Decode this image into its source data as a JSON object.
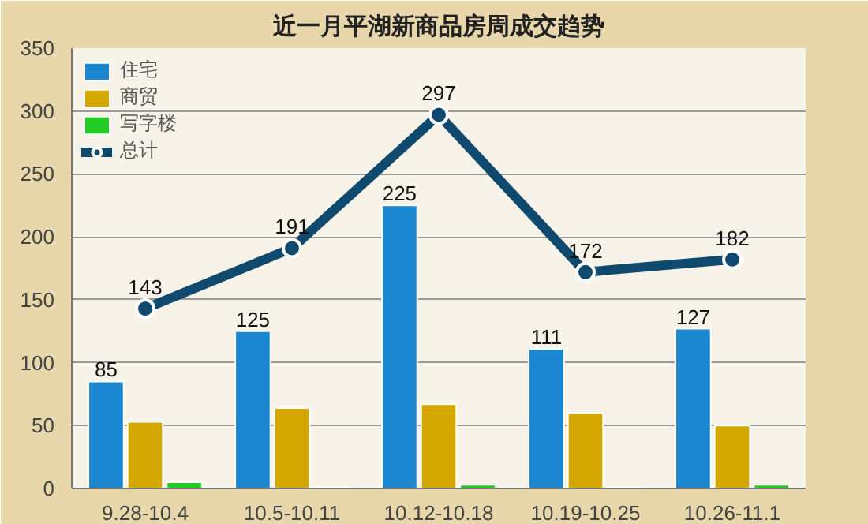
{
  "chart_data": {
    "type": "bar",
    "title": "近一月平湖新商品房周成交趋势",
    "categories": [
      "9.28-10.4",
      "10.5-10.11",
      "10.12-10.18",
      "10.19-10.25",
      "10.26-11.1"
    ],
    "series": [
      {
        "name": "住宅",
        "color": "#1a87d0",
        "values": [
          85,
          125,
          225,
          111,
          127
        ],
        "value_labels": [
          "85",
          "125",
          "225",
          "111",
          "127"
        ]
      },
      {
        "name": "商贸",
        "color": "#d4a800",
        "values": [
          53,
          64,
          67,
          60,
          50
        ]
      },
      {
        "name": "写字楼",
        "color": "#22cc22",
        "values": [
          5,
          1,
          3,
          1,
          3
        ]
      },
      {
        "name": "总计",
        "type": "line",
        "color": "#0f4a6e",
        "values": [
          143,
          191,
          297,
          172,
          182
        ],
        "value_labels": [
          "143",
          "191",
          "297",
          "172",
          "182"
        ]
      }
    ],
    "ylim": [
      0,
      350
    ],
    "yticks": [
      0,
      50,
      100,
      150,
      200,
      250,
      300,
      350
    ],
    "grid": "y",
    "legend": "top left",
    "marker": "circle"
  }
}
